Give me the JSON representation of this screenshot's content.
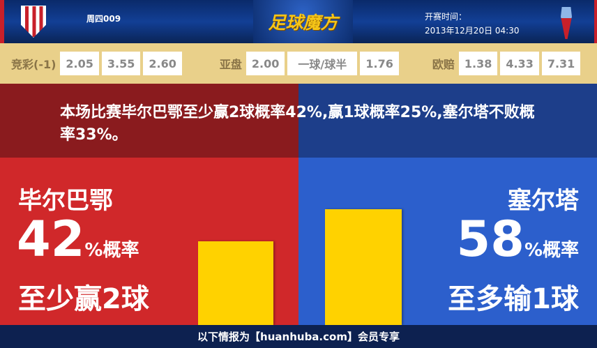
{
  "header": {
    "match_code": "周四009",
    "brand": "足球魔方",
    "kickoff_label": "开赛时间：",
    "kickoff_time": "2013年12月20日 04:30"
  },
  "odds": {
    "jingcai": {
      "label": "竞彩(-1)",
      "values": [
        "2.05",
        "3.55",
        "2.60"
      ]
    },
    "asian": {
      "label": "亚盘",
      "values": [
        "2.00",
        "一球/球半",
        "1.76"
      ]
    },
    "euro": {
      "label": "欧赔",
      "values": [
        "1.38",
        "4.33",
        "7.31"
      ]
    }
  },
  "summary": "本场比赛毕尔巴鄂至少赢2球概率42%,赢1球概率25%,塞尔塔不败概率33%。",
  "home": {
    "name": "毕尔巴鄂",
    "percent": "42",
    "percent_suffix": "%概率",
    "outcome": "至少赢2球",
    "color": "#d0282a"
  },
  "away": {
    "name": "塞尔塔",
    "percent": "58",
    "percent_suffix": "%概率",
    "outcome": "至多输1球",
    "color": "#2c5fcc"
  },
  "footer": "以下情报为【huanhuba.com】会员专享"
}
